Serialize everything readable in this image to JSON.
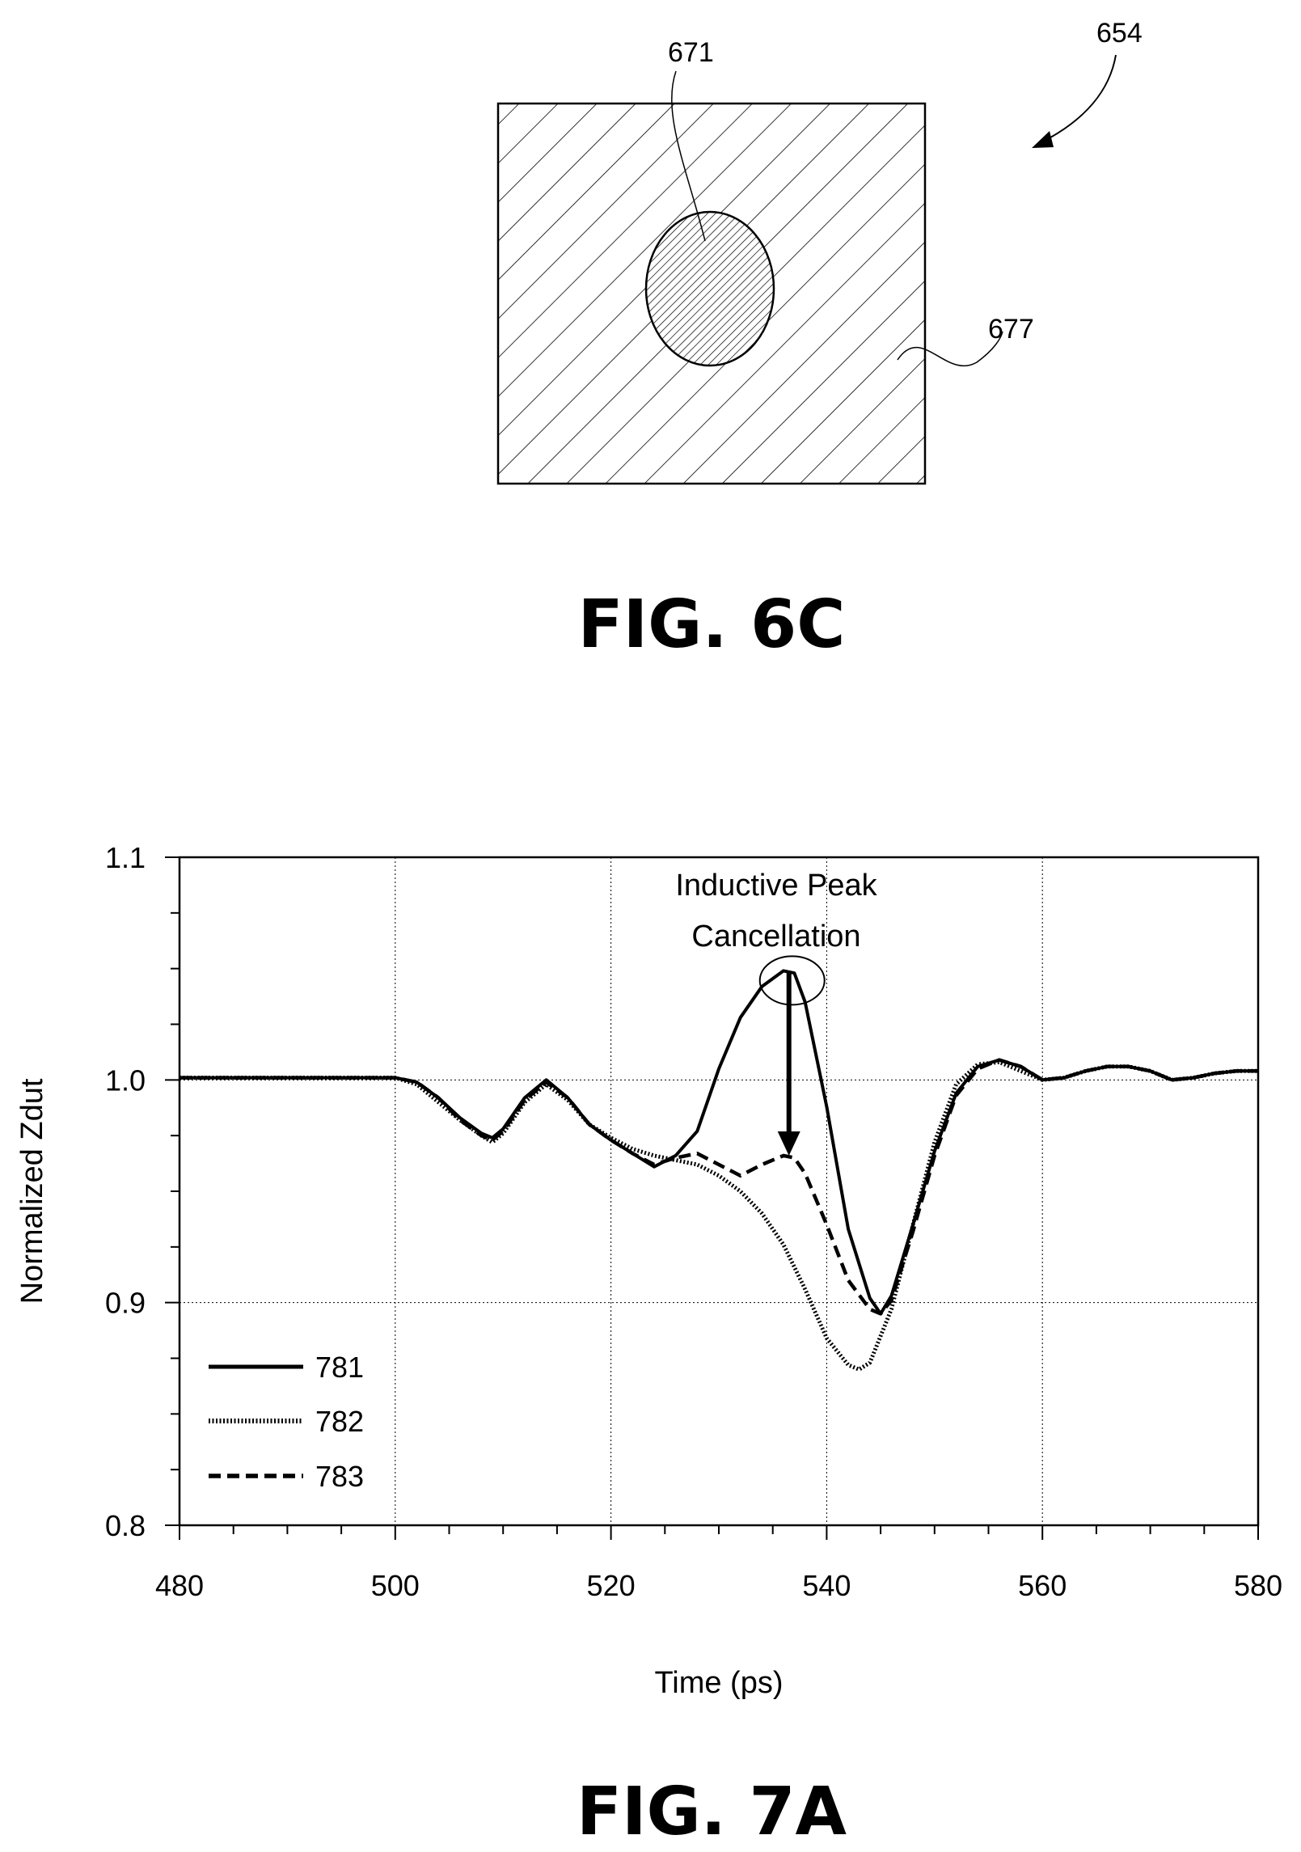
{
  "fig6c": {
    "caption": "FIG. 6C",
    "ref_assembly": "654",
    "ref_inner": "671",
    "ref_outer": "677"
  },
  "fig7a": {
    "caption": "FIG. 7A"
  },
  "chart_data": {
    "type": "line",
    "title": "",
    "xlabel": "Time (ps)",
    "ylabel": "Normalized Zdut",
    "xlim": [
      480,
      580
    ],
    "ylim": [
      0.8,
      1.1
    ],
    "xticks": [
      480,
      500,
      520,
      540,
      560,
      580
    ],
    "xtick_labels": [
      "480",
      "500",
      "520",
      "540",
      "560",
      "580"
    ],
    "yticks": [
      0.8,
      0.9,
      1.0,
      1.1
    ],
    "ytick_labels": [
      "0.8",
      "0.9",
      "1.0",
      "1.1"
    ],
    "grid": true,
    "legend_position": "bottom-left",
    "annotation": {
      "lines": [
        "Inductive Peak",
        "Cancellation"
      ],
      "peak_x": 536.5,
      "peak_y": 1.049,
      "arrow_to_x": 536.5,
      "arrow_to_y": 0.966
    },
    "series": [
      {
        "name": "781",
        "style": "solid",
        "x": [
          480,
          490,
          500,
          502,
          504,
          506,
          508,
          509,
          510,
          512,
          514,
          516,
          518,
          520,
          522,
          524,
          526,
          528,
          530,
          532,
          534,
          536,
          537,
          538,
          540,
          542,
          544,
          545,
          546,
          548,
          550,
          552,
          554,
          556,
          558,
          560,
          562,
          564,
          566,
          568,
          570,
          572,
          574,
          576,
          578,
          580
        ],
        "y": [
          1.001,
          1.001,
          1.001,
          0.999,
          0.992,
          0.983,
          0.976,
          0.974,
          0.978,
          0.992,
          1.0,
          0.992,
          0.98,
          0.973,
          0.967,
          0.961,
          0.966,
          0.977,
          1.005,
          1.028,
          1.042,
          1.049,
          1.048,
          1.035,
          0.988,
          0.933,
          0.902,
          0.895,
          0.903,
          0.935,
          0.968,
          0.994,
          1.006,
          1.009,
          1.006,
          1.0,
          1.001,
          1.004,
          1.006,
          1.006,
          1.004,
          1.0,
          1.001,
          1.003,
          1.004,
          1.004
        ]
      },
      {
        "name": "782",
        "style": "dotted",
        "x": [
          480,
          490,
          500,
          502,
          504,
          506,
          508,
          509,
          510,
          512,
          514,
          516,
          518,
          520,
          522,
          524,
          526,
          528,
          530,
          532,
          534,
          536,
          538,
          540,
          542,
          543,
          544,
          546,
          548,
          550,
          552,
          554,
          556,
          558,
          560,
          562,
          564,
          566,
          568,
          570,
          572,
          574,
          576,
          578,
          580
        ],
        "y": [
          1.001,
          1.001,
          1.001,
          0.998,
          0.99,
          0.982,
          0.975,
          0.972,
          0.976,
          0.99,
          0.998,
          0.991,
          0.98,
          0.974,
          0.969,
          0.966,
          0.964,
          0.962,
          0.957,
          0.95,
          0.94,
          0.926,
          0.906,
          0.884,
          0.872,
          0.87,
          0.873,
          0.897,
          0.935,
          0.972,
          0.998,
          1.007,
          1.008,
          1.004,
          1.0,
          1.001,
          1.004,
          1.006,
          1.006,
          1.004,
          1.0,
          1.001,
          1.003,
          1.004,
          1.004
        ]
      },
      {
        "name": "783",
        "style": "dashed",
        "x": [
          480,
          490,
          500,
          502,
          504,
          506,
          508,
          509,
          510,
          512,
          514,
          516,
          518,
          520,
          522,
          524,
          526,
          528,
          530,
          532,
          534,
          536,
          537,
          538,
          540,
          542,
          544,
          545,
          546,
          548,
          550,
          552,
          554,
          556,
          558,
          560,
          562,
          564,
          566,
          568,
          570,
          572,
          574,
          576,
          578,
          580
        ],
        "y": [
          1.001,
          1.001,
          1.001,
          0.999,
          0.992,
          0.982,
          0.975,
          0.973,
          0.977,
          0.991,
          0.999,
          0.992,
          0.98,
          0.973,
          0.967,
          0.962,
          0.965,
          0.967,
          0.962,
          0.957,
          0.962,
          0.966,
          0.965,
          0.958,
          0.935,
          0.91,
          0.897,
          0.895,
          0.901,
          0.932,
          0.966,
          0.993,
          1.005,
          1.009,
          1.006,
          1.0,
          1.001,
          1.004,
          1.006,
          1.006,
          1.004,
          1.0,
          1.001,
          1.003,
          1.004,
          1.004
        ]
      }
    ]
  }
}
